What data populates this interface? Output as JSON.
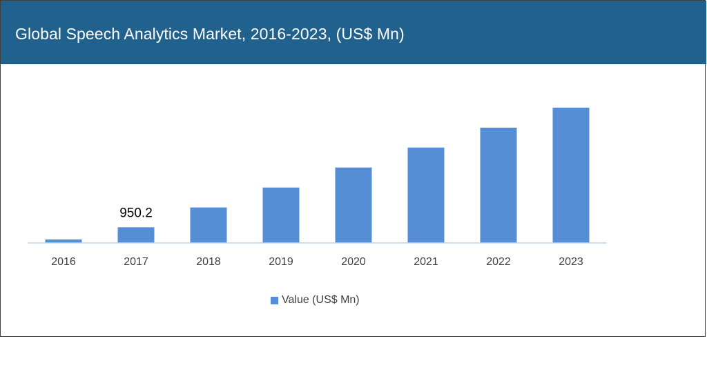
{
  "header": {
    "title": "Global Speech Analytics Market, 2016-2023, (US$ Mn)"
  },
  "colors": {
    "header_bg": "#21618d",
    "bar": "#558ed5",
    "axis": "#bfd0e8"
  },
  "chart_data": {
    "type": "bar",
    "title": "Global Speech Analytics Market, 2016-2023, (US$ Mn)",
    "categories": [
      "2016",
      "2017",
      "2018",
      "2019",
      "2020",
      "2021",
      "2022",
      "2023"
    ],
    "series": [
      {
        "name": "Value (US$ Mn)",
        "values": [
          212,
          950.2,
          2151,
          3358,
          4571,
          5778,
          6985,
          8197
        ]
      }
    ],
    "data_labels": [
      {
        "category": "2017",
        "text": "950.2"
      }
    ],
    "ylim": [
      0,
      8197
    ],
    "xlabel": "",
    "ylabel": "",
    "grid": false,
    "legend": {
      "position": "bottom",
      "entries": [
        "Value (US$ Mn)"
      ]
    }
  }
}
